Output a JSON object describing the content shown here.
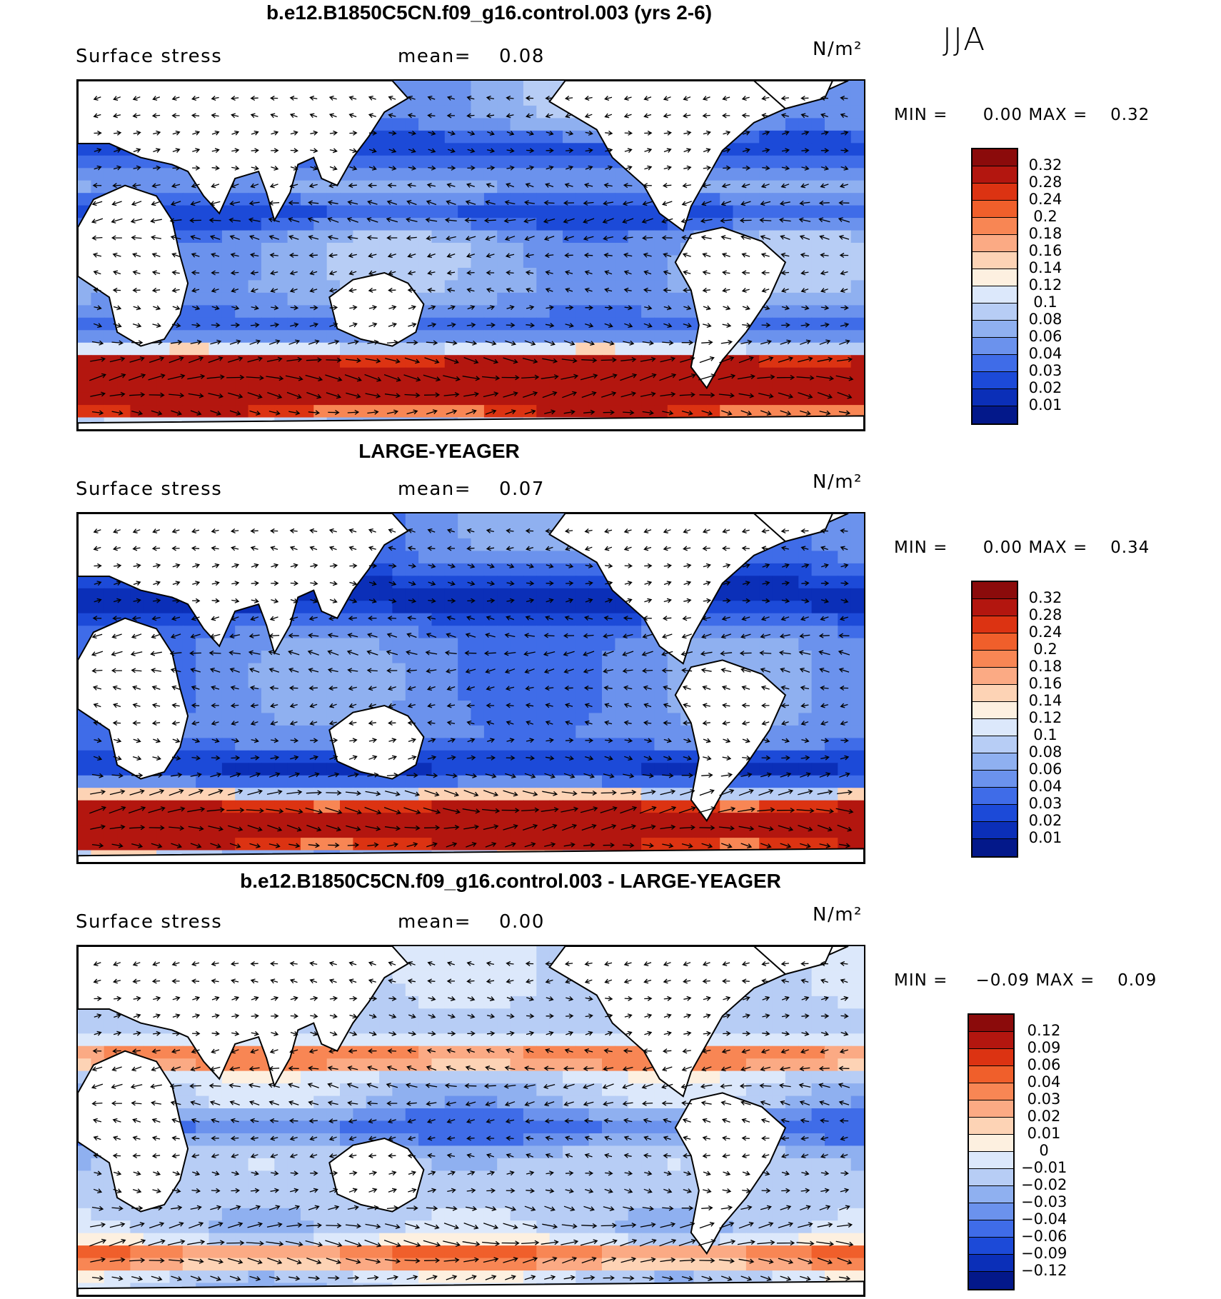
{
  "season": "JJA",
  "colors": {
    "ocean_base": "#4f73e3",
    "land": "#ffffff",
    "coast": "#000000"
  },
  "panels": [
    {
      "title": "b.e12.B1850C5CN.f09_g16.control.003 (yrs 2-6)",
      "variable": "Surface stress",
      "mean_label": "mean=",
      "mean_value": "0.08",
      "units": "N/m²",
      "min_label": "MIN =",
      "min_value": "0.00",
      "max_label": "MAX =",
      "max_value": "0.32",
      "colorbar_colors": [
        "#8b0b0b",
        "#b3160f",
        "#dc3312",
        "#f05f2b",
        "#f88654",
        "#fbaa84",
        "#fdd3b5",
        "#fdf0e0",
        "#dce8fb",
        "#b7cdf5",
        "#8fb0f0",
        "#6b92ed",
        "#3f6ce8",
        "#1c4ad8",
        "#0b2fb8",
        "#03188a"
      ],
      "colorbar_ticks": [
        "0.32",
        "0.28",
        "0.24",
        "0.2",
        "0.18",
        "0.16",
        "0.14",
        "0.12",
        "0.1",
        "0.08",
        "0.06",
        "0.04",
        "0.03",
        "0.02",
        "0.01"
      ],
      "field_palette": [
        "#1c4ad8",
        "#3f6ce8",
        "#6b92ed",
        "#8fb0f0",
        "#b7cdf5",
        "#dce8fb",
        "#fdd3b5",
        "#f88654",
        "#dc3312",
        "#b3160f"
      ],
      "hot_bands": [
        [
          0.82,
          0.1
        ],
        [
          0.85,
          0.06
        ],
        [
          0.88,
          0.05
        ]
      ],
      "cold_bands": [
        [
          0.7,
          0.07
        ],
        [
          0.36,
          0.05
        ],
        [
          0.18,
          0.06
        ]
      ]
    },
    {
      "title": "LARGE-YEAGER",
      "variable": "Surface stress",
      "mean_label": "mean=",
      "mean_value": "0.07",
      "units": "N/m²",
      "min_label": "MIN =",
      "min_value": "0.00",
      "max_label": "MAX =",
      "max_value": "0.34",
      "colorbar_colors": [
        "#8b0b0b",
        "#b3160f",
        "#dc3312",
        "#f05f2b",
        "#f88654",
        "#fbaa84",
        "#fdd3b5",
        "#fdf0e0",
        "#dce8fb",
        "#b7cdf5",
        "#8fb0f0",
        "#6b92ed",
        "#3f6ce8",
        "#1c4ad8",
        "#0b2fb8",
        "#03188a"
      ],
      "colorbar_ticks": [
        "0.32",
        "0.28",
        "0.24",
        "0.2",
        "0.18",
        "0.16",
        "0.14",
        "0.12",
        "0.1",
        "0.08",
        "0.06",
        "0.04",
        "0.03",
        "0.02",
        "0.01"
      ],
      "field_palette": [
        "#0b2fb8",
        "#1c4ad8",
        "#3f6ce8",
        "#6b92ed",
        "#8fb0f0",
        "#b7cdf5",
        "#fdd3b5",
        "#f88654",
        "#dc3312",
        "#b3160f"
      ],
      "hot_bands": [
        [
          0.84,
          0.08
        ],
        [
          0.9,
          0.05
        ]
      ],
      "cold_bands": [
        [
          0.72,
          0.06
        ],
        [
          0.22,
          0.08
        ]
      ]
    },
    {
      "title": "b.e12.B1850C5CN.f09_g16.control.003 - LARGE-YEAGER",
      "variable": "Surface stress",
      "mean_label": "mean=",
      "mean_value": "0.00",
      "units": "N/m²",
      "min_label": "MIN =",
      "min_value": "−0.09",
      "max_label": "MAX =",
      "max_value": "0.09",
      "colorbar_colors": [
        "#8b0b0b",
        "#b3160f",
        "#dc3312",
        "#f05f2b",
        "#f88654",
        "#fbaa84",
        "#fdd3b5",
        "#fdf0e0",
        "#dce8fb",
        "#b7cdf5",
        "#8fb0f0",
        "#6b92ed",
        "#3f6ce8",
        "#1c4ad8",
        "#0b2fb8",
        "#03188a"
      ],
      "colorbar_ticks": [
        "0.12",
        "0.09",
        "0.06",
        "0.04",
        "0.03",
        "0.02",
        "0.01",
        "0",
        "−0.01",
        "−0.02",
        "−0.03",
        "−0.04",
        "−0.06",
        "−0.09",
        "−0.12"
      ],
      "field_palette": [
        "#3f6ce8",
        "#6b92ed",
        "#8fb0f0",
        "#b7cdf5",
        "#dce8fb",
        "#fdf0e0",
        "#fdd3b5",
        "#fbaa84",
        "#f88654",
        "#f05f2b"
      ],
      "hot_bands": [
        [
          0.87,
          0.04
        ],
        [
          0.3,
          0.04
        ]
      ],
      "cold_bands": [
        [
          0.5,
          0.05
        ]
      ]
    }
  ]
}
